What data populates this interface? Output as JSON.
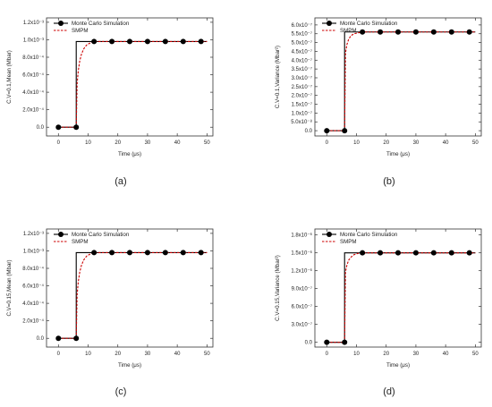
{
  "colors": {
    "mc_line": "#000000",
    "mc_marker": "#000000",
    "smpm_line": "#cc0000",
    "background": "#ffffff",
    "axis": "#333333"
  },
  "chart_data": [
    {
      "panel": "(a)",
      "type": "line",
      "title": "",
      "xlabel": "Time (μs)",
      "ylabel": "C.V=0.1,Mean (Mbar)",
      "xlim": [
        -4,
        52
      ],
      "ylim": [
        -0.0001,
        0.00125
      ],
      "xticks": [
        "0",
        "10",
        "20",
        "30",
        "40",
        "50"
      ],
      "yticks": [
        "0.0",
        "2.0x10⁻⁴",
        "4.0x10⁻⁴",
        "6.0x10⁻⁴",
        "8.0x10⁻⁴",
        "1.0x10⁻³",
        "1.2x10⁻³"
      ],
      "ytick_values": [
        0,
        0.0002,
        0.0004,
        0.0006,
        0.0008,
        0.001,
        0.0012
      ],
      "legend": {
        "position": "top-left",
        "entries": [
          "Monte Carlo Simulation",
          "SMPM"
        ]
      },
      "series": [
        {
          "name": "Monte Carlo Simulation",
          "style": "solid line with circle markers",
          "x": [
            0,
            6,
            12,
            18,
            24,
            30,
            36,
            42,
            48
          ],
          "y": [
            0,
            0,
            0.00098,
            0.00098,
            0.00098,
            0.00098,
            0.00098,
            0.00098,
            0.00098
          ],
          "line_x": [
            0,
            6,
            6,
            50
          ],
          "line_y": [
            0,
            0,
            0.00098,
            0.00098
          ]
        },
        {
          "name": "SMPM",
          "style": "dashed",
          "x": [
            0,
            6,
            6.3,
            6.7,
            7.2,
            7.8,
            8.6,
            9.5,
            10.5,
            12,
            14,
            50
          ],
          "y": [
            0,
            0,
            0.0005,
            0.00065,
            0.00076,
            0.00084,
            0.0009,
            0.00094,
            0.00096,
            0.00098,
            0.00098,
            0.00098
          ]
        }
      ]
    },
    {
      "panel": "(b)",
      "type": "line",
      "title": "",
      "xlabel": "Time (μs)",
      "ylabel": "C.V=0.1,Variance (Mbar²)",
      "xlim": [
        -4,
        52
      ],
      "ylim": [
        -3e-08,
        6.4e-07
      ],
      "xticks": [
        "0",
        "10",
        "20",
        "30",
        "40",
        "50"
      ],
      "yticks": [
        "0.0",
        "5.0x10⁻⁸",
        "1.0x10⁻⁷",
        "1.5x10⁻⁷",
        "2.0x10⁻⁷",
        "2.5x10⁻⁷",
        "3.0x10⁻⁷",
        "3.5x10⁻⁷",
        "4.0x10⁻⁷",
        "4.5x10⁻⁷",
        "5.0x10⁻⁷",
        "5.5x10⁻⁷",
        "6.0x10⁻⁷"
      ],
      "ytick_values": [
        0,
        5e-08,
        1e-07,
        1.5e-07,
        2e-07,
        2.5e-07,
        3e-07,
        3.5e-07,
        4e-07,
        4.5e-07,
        5e-07,
        5.5e-07,
        6e-07
      ],
      "legend": {
        "position": "top-left",
        "entries": [
          "Monte Carlo Simulation",
          "SMPM"
        ]
      },
      "series": [
        {
          "name": "Monte Carlo Simulation",
          "style": "solid line with circle markers",
          "x": [
            0,
            6,
            12,
            18,
            24,
            30,
            36,
            42,
            48
          ],
          "y": [
            0,
            0,
            5.6e-07,
            5.6e-07,
            5.6e-07,
            5.6e-07,
            5.6e-07,
            5.6e-07,
            5.6e-07
          ],
          "line_x": [
            0,
            6,
            6,
            50
          ],
          "line_y": [
            0,
            0,
            5.6e-07,
            5.6e-07
          ]
        },
        {
          "name": "SMPM",
          "style": "dashed",
          "x": [
            0,
            6,
            6.3,
            6.8,
            7.4,
            8.2,
            9.2,
            10.5,
            12,
            14,
            50
          ],
          "y": [
            0,
            0,
            4.4e-07,
            4.9e-07,
            5.2e-07,
            5.4e-07,
            5.5e-07,
            5.55e-07,
            5.6e-07,
            5.6e-07,
            5.6e-07
          ]
        }
      ]
    },
    {
      "panel": "(c)",
      "type": "line",
      "title": "",
      "xlabel": "Time (μs)",
      "ylabel": "C.V=0.15,Mean (Mbar)",
      "xlim": [
        -4,
        52
      ],
      "ylim": [
        -0.0001,
        0.00125
      ],
      "xticks": [
        "0",
        "10",
        "20",
        "30",
        "40",
        "50"
      ],
      "yticks": [
        "0.0",
        "2.0x10⁻⁴",
        "4.0x10⁻⁴",
        "6.0x10⁻⁴",
        "8.0x10⁻⁴",
        "1.0x10⁻³",
        "1.2x10⁻³"
      ],
      "ytick_values": [
        0,
        0.0002,
        0.0004,
        0.0006,
        0.0008,
        0.001,
        0.0012
      ],
      "legend": {
        "position": "top-left",
        "entries": [
          "Monte Carlo Simulation",
          "SMPM"
        ]
      },
      "series": [
        {
          "name": "Monte Carlo Simulation",
          "style": "solid line with circle markers",
          "x": [
            0,
            6,
            12,
            18,
            24,
            30,
            36,
            42,
            48
          ],
          "y": [
            0,
            0,
            0.00098,
            0.00098,
            0.00098,
            0.00098,
            0.00098,
            0.00098,
            0.00098
          ],
          "line_x": [
            0,
            6,
            6,
            50
          ],
          "line_y": [
            0,
            0,
            0.00098,
            0.00098
          ]
        },
        {
          "name": "SMPM",
          "style": "dashed",
          "x": [
            0,
            6,
            6.3,
            6.7,
            7.2,
            7.8,
            8.6,
            9.5,
            10.5,
            12,
            14,
            50
          ],
          "y": [
            0,
            0,
            0.0005,
            0.00065,
            0.00076,
            0.00084,
            0.0009,
            0.00094,
            0.00096,
            0.00098,
            0.00098,
            0.00098
          ]
        }
      ]
    },
    {
      "panel": "(d)",
      "type": "line",
      "title": "",
      "xlabel": "Time (μs)",
      "ylabel": "C.V=0.15,Variance (Mbar²)",
      "xlim": [
        -4,
        52
      ],
      "ylim": [
        -8e-08,
        1.9e-06
      ],
      "xticks": [
        "0",
        "10",
        "20",
        "30",
        "40",
        "50"
      ],
      "yticks": [
        "0.0",
        "3.0x10⁻⁷",
        "6.0x10⁻⁷",
        "9.0x10⁻⁷",
        "1.2x10⁻⁶",
        "1.5x10⁻⁶",
        "1.8x10⁻⁶"
      ],
      "ytick_values": [
        0,
        3e-07,
        6e-07,
        9e-07,
        1.2e-06,
        1.5e-06,
        1.8e-06
      ],
      "legend": {
        "position": "top-left",
        "entries": [
          "Monte Carlo Simulation",
          "SMPM"
        ]
      },
      "series": [
        {
          "name": "Monte Carlo Simulation",
          "style": "solid line with circle markers",
          "x": [
            0,
            6,
            12,
            18,
            24,
            30,
            36,
            42,
            48
          ],
          "y": [
            0,
            0,
            1.5e-06,
            1.5e-06,
            1.5e-06,
            1.5e-06,
            1.5e-06,
            1.5e-06,
            1.5e-06
          ],
          "line_x": [
            0,
            6,
            6,
            50
          ],
          "line_y": [
            0,
            0,
            1.5e-06,
            1.5e-06
          ]
        },
        {
          "name": "SMPM",
          "style": "dashed",
          "x": [
            0,
            6,
            6.3,
            6.8,
            7.4,
            8.2,
            9.2,
            10.5,
            12,
            14,
            50
          ],
          "y": [
            0,
            0,
            1.18e-06,
            1.3e-06,
            1.38e-06,
            1.43e-06,
            1.47e-06,
            1.49e-06,
            1.5e-06,
            1.5e-06,
            1.5e-06
          ]
        }
      ]
    }
  ]
}
